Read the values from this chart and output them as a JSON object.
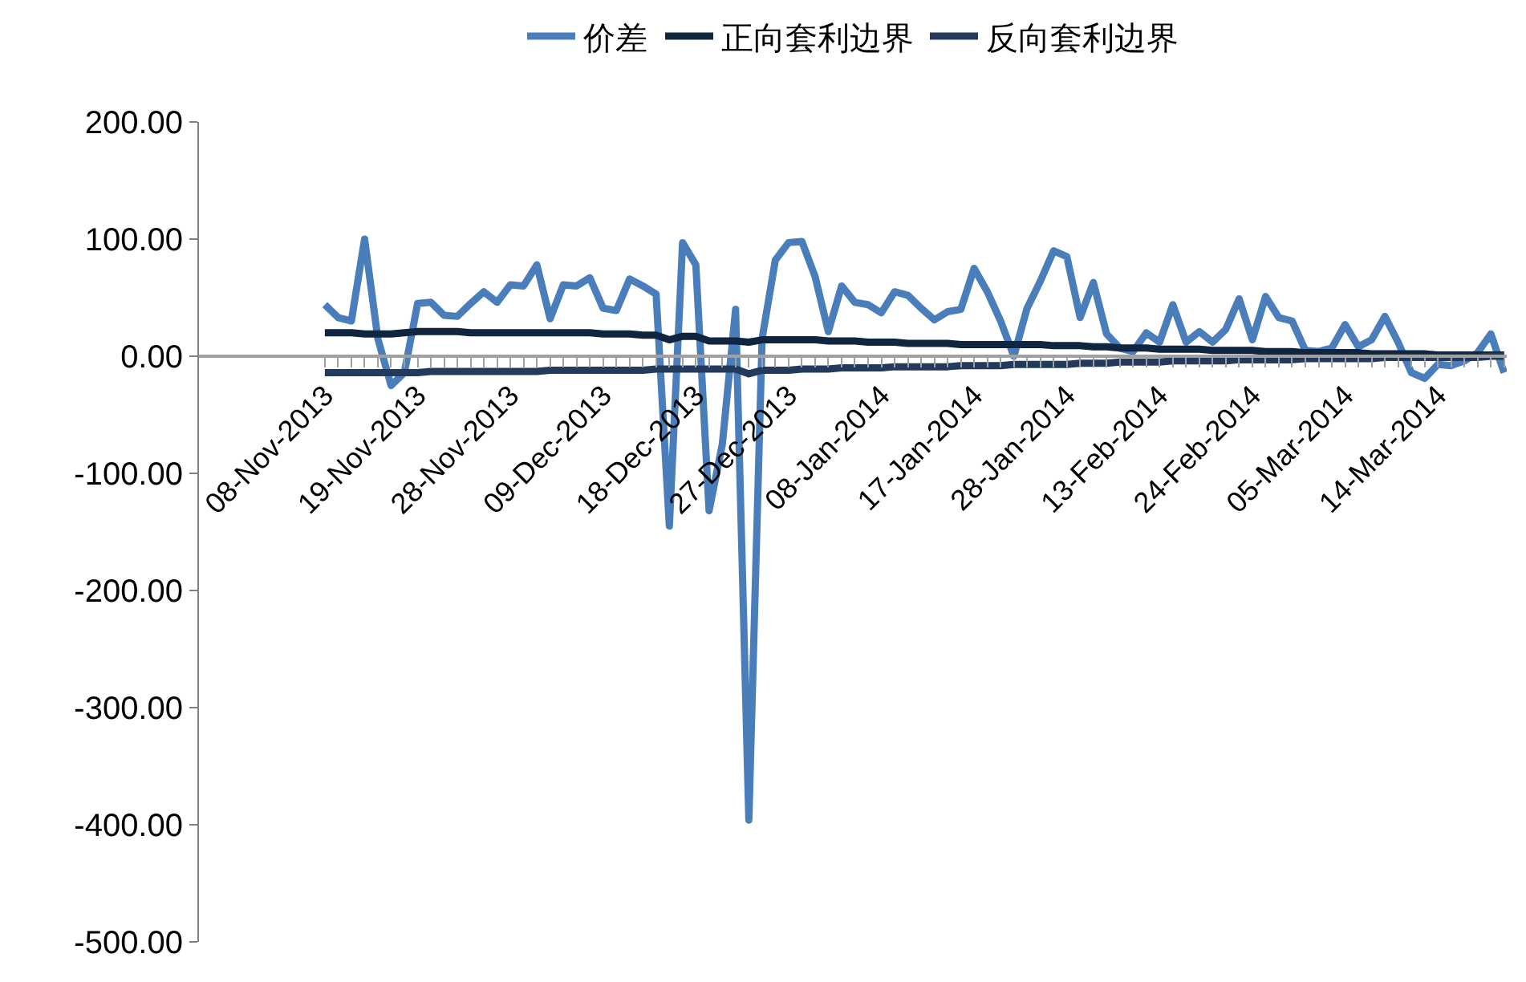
{
  "chart_data": {
    "type": "line",
    "legend": "top",
    "categories": [
      "08-Nov-2013",
      null,
      null,
      null,
      null,
      null,
      null,
      "19-Nov-2013",
      null,
      null,
      null,
      null,
      null,
      null,
      "28-Nov-2013",
      null,
      null,
      null,
      null,
      null,
      null,
      "09-Dec-2013",
      null,
      null,
      null,
      null,
      null,
      null,
      "18-Dec-2013",
      null,
      null,
      null,
      null,
      null,
      null,
      "27-Dec-2013",
      null,
      null,
      null,
      null,
      null,
      null,
      "08-Jan-2014",
      null,
      null,
      null,
      null,
      null,
      null,
      "17-Jan-2014",
      null,
      null,
      null,
      null,
      null,
      null,
      "28-Jan-2014",
      null,
      null,
      null,
      null,
      null,
      null,
      "13-Feb-2014",
      null,
      null,
      null,
      null,
      null,
      null,
      "24-Feb-2014",
      null,
      null,
      null,
      null,
      null,
      null,
      "05-Mar-2014",
      null,
      null,
      null,
      null,
      null,
      null,
      "14-Mar-2014",
      null,
      null,
      null,
      null,
      null
    ],
    "ylim": [
      -500,
      200
    ],
    "yticks": [
      {
        "value": -500,
        "label": "-500.00"
      },
      {
        "value": -400,
        "label": "-400.00"
      },
      {
        "value": -300,
        "label": "-300.00"
      },
      {
        "value": -200,
        "label": "-200.00"
      },
      {
        "value": -100,
        "label": "-100.00"
      },
      {
        "value": 0,
        "label": "0.00"
      },
      {
        "value": 100,
        "label": "100.00"
      },
      {
        "value": 200,
        "label": "200.00"
      }
    ],
    "series": [
      {
        "name": "价差",
        "color": "#4a7ebb",
        "values": [
          44,
          33,
          30,
          100,
          15,
          -25,
          -14,
          45,
          46,
          35,
          34,
          45,
          55,
          46,
          61,
          60,
          78,
          32,
          61,
          60,
          67,
          41,
          39,
          66,
          60,
          53,
          -145,
          97,
          78,
          -132,
          -75,
          40,
          -396,
          15,
          82,
          97,
          98,
          68,
          21,
          60,
          46,
          44,
          37,
          55,
          52,
          41,
          31,
          38,
          40,
          75,
          55,
          30,
          0,
          41,
          64,
          90,
          85,
          33,
          63,
          19,
          7,
          4,
          20,
          12,
          44,
          12,
          21,
          12,
          23,
          49,
          14,
          51,
          33,
          30,
          5,
          4,
          7,
          27,
          8,
          14,
          34,
          12,
          -14,
          -19,
          -7,
          -8,
          -4,
          3,
          19,
          -14
        ]
      },
      {
        "name": "正向套利边界",
        "color": "#10253f",
        "values": [
          20,
          20,
          20,
          19,
          19,
          19,
          20,
          21,
          21,
          21,
          21,
          20,
          20,
          20,
          20,
          20,
          20,
          20,
          20,
          20,
          20,
          19,
          19,
          19,
          18,
          18,
          14,
          17,
          17,
          13,
          13,
          13,
          12,
          14,
          14,
          14,
          14,
          14,
          13,
          13,
          13,
          12,
          12,
          12,
          11,
          11,
          11,
          11,
          10,
          10,
          10,
          10,
          10,
          10,
          10,
          9,
          9,
          9,
          8,
          8,
          7,
          7,
          7,
          6,
          6,
          6,
          6,
          5,
          5,
          5,
          5,
          4,
          4,
          4,
          3,
          3,
          3,
          3,
          3,
          2,
          2,
          2,
          2,
          2,
          1,
          1,
          1,
          1,
          1,
          1
        ]
      },
      {
        "name": "反向套利边界",
        "color": "#233a5c",
        "values": [
          -14,
          -14,
          -14,
          -14,
          -14,
          -14,
          -14,
          -14,
          -13,
          -13,
          -13,
          -13,
          -13,
          -13,
          -13,
          -13,
          -13,
          -12,
          -12,
          -12,
          -12,
          -12,
          -12,
          -12,
          -12,
          -11,
          -11,
          -11,
          -11,
          -11,
          -11,
          -11,
          -15,
          -12,
          -12,
          -12,
          -11,
          -11,
          -11,
          -10,
          -10,
          -10,
          -10,
          -9,
          -9,
          -9,
          -9,
          -9,
          -8,
          -8,
          -8,
          -8,
          -7,
          -7,
          -7,
          -7,
          -7,
          -6,
          -6,
          -6,
          -5,
          -5,
          -5,
          -5,
          -4,
          -4,
          -4,
          -4,
          -4,
          -3,
          -3,
          -3,
          -3,
          -3,
          -2,
          -2,
          -2,
          -2,
          -2,
          -2,
          -1,
          -1,
          -1,
          -1,
          -1,
          -1,
          -1,
          -1,
          0,
          0
        ]
      }
    ]
  }
}
